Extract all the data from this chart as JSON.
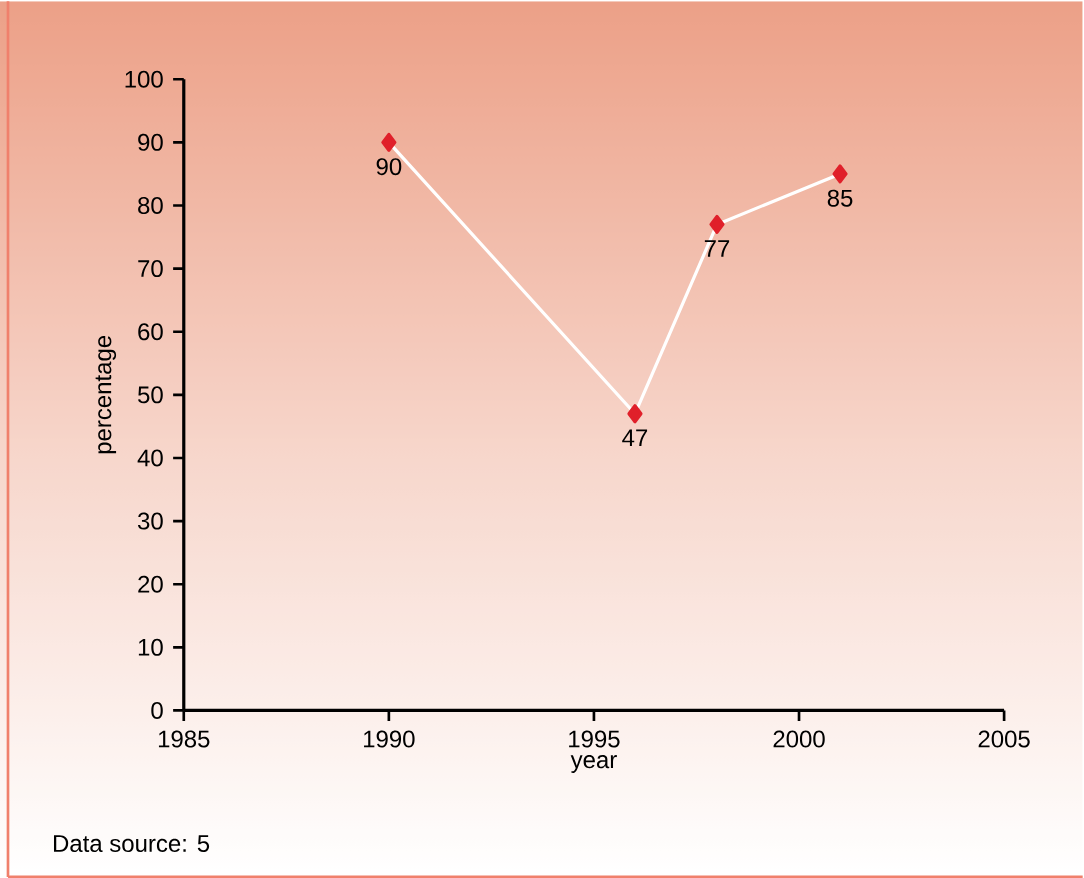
{
  "chart_data": {
    "type": "line",
    "xlabel": "year",
    "ylabel": "percentage",
    "annotations": [
      "Data source: 5"
    ],
    "x": [
      1990,
      1996,
      1998,
      2001
    ],
    "series": [
      {
        "color": "#e0202a",
        "values": [
          90,
          47,
          77,
          85
        ]
      }
    ],
    "xlim": [
      1985,
      2005
    ],
    "xticks": [
      1985,
      1990,
      1995,
      2000,
      2005
    ],
    "ylim": [
      0,
      100
    ],
    "yticks": [
      0,
      10,
      20,
      30,
      40,
      50,
      60,
      70,
      80,
      90,
      100
    ],
    "data_labels": true,
    "marker": "diamond",
    "line_style": "solid"
  }
}
